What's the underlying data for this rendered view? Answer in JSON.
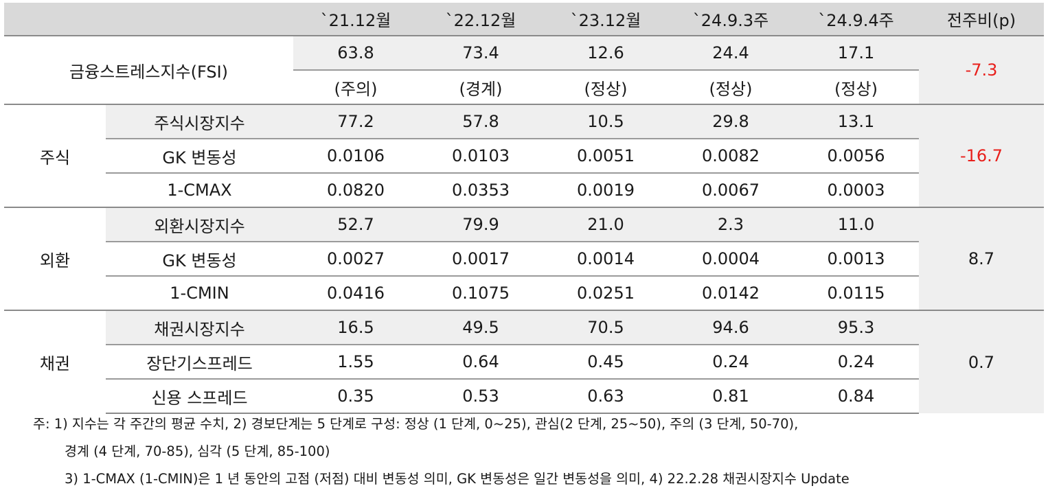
{
  "headers": [
    "`21.12월",
    "`22.12월",
    "`23.12월",
    "`24.9.3주",
    "`24.9.4주",
    "전주비(p)"
  ],
  "fsi": {
    "label": "금융스트레스지수(FSI)",
    "values": [
      "63.8",
      "73.4",
      "12.6",
      "24.4",
      "17.1"
    ],
    "levels": [
      "(주의)",
      "(경계)",
      "(정상)",
      "(정상)",
      "(정상)"
    ],
    "change": "-7.3"
  },
  "groups": [
    {
      "name": "주식",
      "change": "-16.7",
      "rows": [
        {
          "label": "주식시장지수",
          "values": [
            "77.2",
            "57.8",
            "10.5",
            "29.8",
            "13.1"
          ]
        },
        {
          "label": "GK 변동성",
          "values": [
            "0.0106",
            "0.0103",
            "0.0051",
            "0.0082",
            "0.0056"
          ]
        },
        {
          "label": "1-CMAX",
          "values": [
            "0.0820",
            "0.0353",
            "0.0019",
            "0.0067",
            "0.0003"
          ]
        }
      ]
    },
    {
      "name": "외환",
      "change": "8.7",
      "rows": [
        {
          "label": "외환시장지수",
          "values": [
            "52.7",
            "79.9",
            "21.0",
            "2.3",
            "11.0"
          ]
        },
        {
          "label": "GK 변동성",
          "values": [
            "0.0027",
            "0.0017",
            "0.0014",
            "0.0004",
            "0.0013"
          ]
        },
        {
          "label": "1-CMIN",
          "values": [
            "0.0416",
            "0.1075",
            "0.0251",
            "0.0142",
            "0.0115"
          ]
        }
      ]
    },
    {
      "name": "채권",
      "change": "0.7",
      "rows": [
        {
          "label": "채권시장지수",
          "values": [
            "16.5",
            "49.5",
            "70.5",
            "94.6",
            "95.3"
          ]
        },
        {
          "label": "장단기스프레드",
          "values": [
            "1.55",
            "0.64",
            "0.45",
            "0.24",
            "0.24"
          ]
        },
        {
          "label": "신용 스프레드",
          "values": [
            "0.35",
            "0.53",
            "0.63",
            "0.81",
            "0.84"
          ]
        }
      ]
    }
  ],
  "notes": [
    "주: 1) 지수는 각 주간의 평균 수치, 2) 경보단계는 5 단계로 구성: 정상 (1 단계, 0~25), 관심(2 단계, 25~50), 주의 (3 단계, 50-70),",
    "경계 (4 단계, 70-85), 심각 (5 단계, 85-100)",
    "3) 1-CMAX (1-CMIN)은 1 년 동안의 고점 (저점) 대비 변동성 의미, GK 변동성은 일간 변동성을 의미, 4) 22.2.28 채권시장지수 Update"
  ],
  "colors": {
    "negative": "#e8201c",
    "header_bg": "#d9d9d9",
    "shade_bg": "#efefef"
  }
}
